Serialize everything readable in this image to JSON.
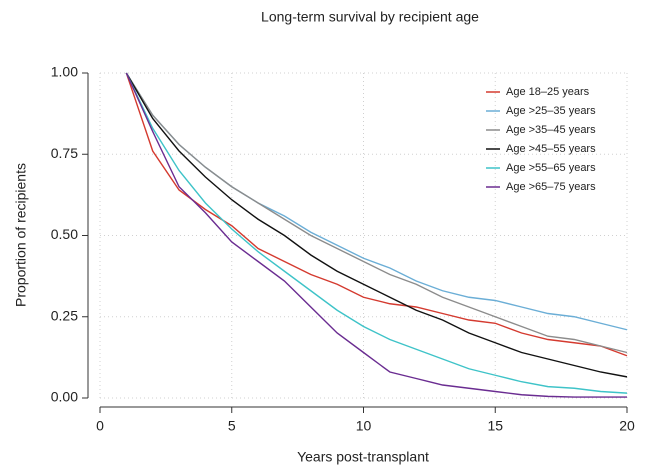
{
  "chart_data": {
    "type": "line",
    "title": "Long-term survival by recipient age",
    "xlabel": "Years post-transplant",
    "ylabel": "Proportion of recipients",
    "x": [
      1,
      2,
      3,
      4,
      5,
      6,
      7,
      8,
      9,
      10,
      11,
      12,
      13,
      14,
      15,
      16,
      17,
      18,
      19,
      20
    ],
    "series": [
      {
        "name": "Age 18–25 years",
        "color": "#d43a2f",
        "values": [
          1,
          0.76,
          0.64,
          0.58,
          0.53,
          0.46,
          0.42,
          0.38,
          0.35,
          0.31,
          0.29,
          0.28,
          0.26,
          0.24,
          0.23,
          0.2,
          0.18,
          0.17,
          0.16,
          0.13
        ]
      },
      {
        "name": "Age >25–35 years",
        "color": "#6baed6",
        "values": [
          1,
          0.87,
          0.78,
          0.71,
          0.65,
          0.6,
          0.56,
          0.51,
          0.47,
          0.43,
          0.4,
          0.36,
          0.33,
          0.31,
          0.3,
          0.28,
          0.26,
          0.25,
          0.23,
          0.21
        ]
      },
      {
        "name": "Age >35–45 years",
        "color": "#8c8c8c",
        "values": [
          1,
          0.87,
          0.78,
          0.71,
          0.65,
          0.6,
          0.55,
          0.5,
          0.46,
          0.42,
          0.38,
          0.35,
          0.31,
          0.28,
          0.25,
          0.22,
          0.19,
          0.18,
          0.16,
          0.14
        ]
      },
      {
        "name": "Age >45–55 years",
        "color": "#111111",
        "values": [
          1,
          0.86,
          0.76,
          0.68,
          0.61,
          0.55,
          0.5,
          0.44,
          0.39,
          0.35,
          0.31,
          0.27,
          0.24,
          0.2,
          0.17,
          0.14,
          0.12,
          0.1,
          0.08,
          0.065
        ]
      },
      {
        "name": "Age >55–65 years",
        "color": "#3ec3c8",
        "values": [
          1,
          0.83,
          0.7,
          0.6,
          0.52,
          0.45,
          0.39,
          0.33,
          0.27,
          0.22,
          0.18,
          0.15,
          0.12,
          0.09,
          0.07,
          0.05,
          0.035,
          0.03,
          0.02,
          0.015
        ]
      },
      {
        "name": "Age >65–75 years",
        "color": "#6a2c91",
        "values": [
          1,
          0.82,
          0.65,
          0.57,
          0.48,
          0.42,
          0.36,
          0.28,
          0.2,
          0.14,
          0.08,
          0.06,
          0.04,
          0.03,
          0.02,
          0.01,
          0.005,
          0.003,
          0.003,
          0.003
        ]
      }
    ],
    "xlim": [
      0,
      20
    ],
    "xticks": [
      0,
      5,
      10,
      15,
      20
    ],
    "ylim": [
      0,
      1
    ],
    "yticks": [
      {
        "value": 0,
        "label": "0.00"
      },
      {
        "value": 0.25,
        "label": "0.25"
      },
      {
        "value": 0.5,
        "label": "0.50"
      },
      {
        "value": 0.75,
        "label": "0.75"
      },
      {
        "value": 1,
        "label": "1.00"
      }
    ],
    "grid": true,
    "legend": "upper right"
  }
}
